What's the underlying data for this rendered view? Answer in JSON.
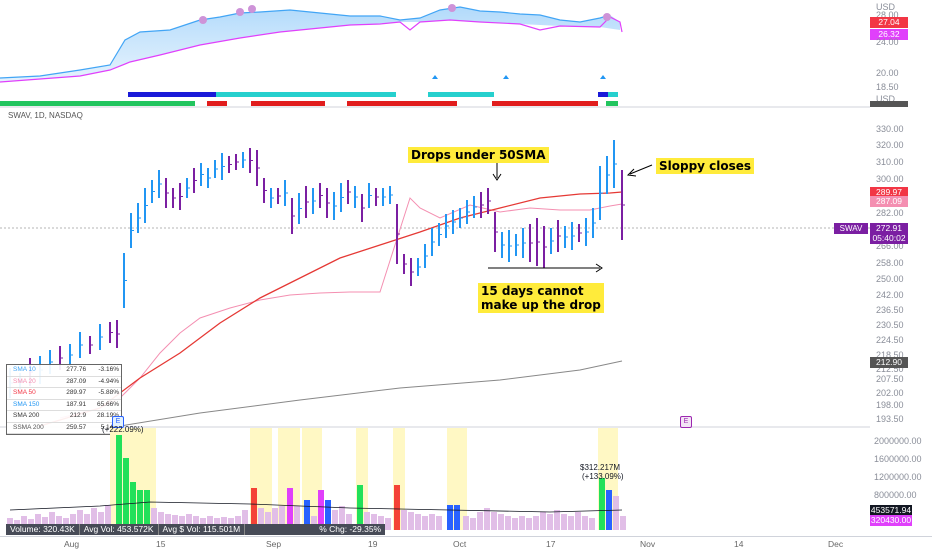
{
  "top_axis": {
    "unit": "USD",
    "ticks": [
      "28.00",
      "24.00",
      "20.00",
      "18.50"
    ],
    "tags": [
      {
        "text": "27.04",
        "color": "#f23645"
      },
      {
        "text": "26.32",
        "color": "#e040fb"
      }
    ]
  },
  "mid_axis": {
    "unit": "USD"
  },
  "symbol_label": "SWAV, 1D, NASDAQ",
  "price_axis": {
    "ticks": [
      "330.00",
      "320.00",
      "310.00",
      "300.00",
      "290.00",
      "282.00",
      "274.00",
      "266.00",
      "258.00",
      "250.00",
      "242.00",
      "236.50",
      "230.50",
      "224.50",
      "218.50",
      "212.50",
      "207.50",
      "202.00",
      "198.00",
      "193.50"
    ],
    "tags": [
      {
        "text": "289.97",
        "color": "#f23645"
      },
      {
        "text": "287.09",
        "color": "#f48fb1"
      },
      {
        "text": "272.91",
        "color": "#7b1fa2"
      },
      {
        "text": "05:40:02",
        "color": "#7b1fa2"
      },
      {
        "text": "212.90",
        "color": "#555555"
      }
    ],
    "symbol_tag": "SWAV"
  },
  "annotations": {
    "drops": "Drops under 50SMA",
    "sloppy": "Sloppy closes",
    "fifteen": "15 days cannot\nmake up the drop"
  },
  "legend_table": [
    [
      "SMA 10",
      "277.76",
      "-3.16%"
    ],
    [
      "SMA 20",
      "287.09",
      "-4.94%"
    ],
    [
      "SMA 50",
      "289.97",
      "-5.88%"
    ],
    [
      "SMA 150",
      "187.91",
      "65.66%"
    ],
    [
      "SMA 200",
      "212.9",
      "28.19%"
    ],
    [
      "SSMA 200",
      "259.57",
      "5.14%"
    ]
  ],
  "earnings_marker": "E",
  "volume": {
    "pct_label": "(+222.09%)",
    "big_label": "$312.217M",
    "big_pct": "(+133.09%)",
    "ticks": [
      "2000000.00",
      "1600000.00",
      "1200000.00",
      "800000.00"
    ],
    "tags": [
      {
        "text": "453571.94",
        "color": "#131722"
      },
      {
        "text": "320430.00",
        "color": "#e040fb"
      }
    ]
  },
  "status_bar": [
    "Volume: 320.43K",
    "Avg Vol: 453.572K",
    "Avg $ Vol: 115.501M",
    "% Chg: -29.35%"
  ],
  "dates": [
    "Aug",
    "15",
    "Sep",
    "19",
    "Oct",
    "17",
    "Nov",
    "14",
    "Dec"
  ]
}
